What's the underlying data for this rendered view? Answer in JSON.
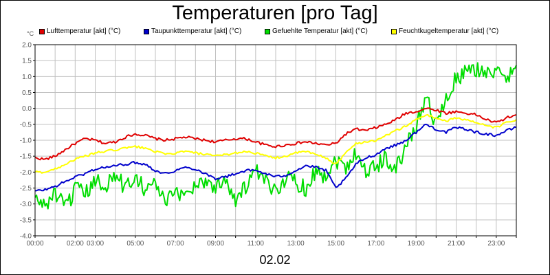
{
  "chart_data": {
    "type": "line",
    "title": "Temperaturen [pro Tag]",
    "xlabel": "02.02",
    "ylabel": "°C",
    "ylim": [
      -4.0,
      2.0
    ],
    "xlim": [
      0,
      24
    ],
    "y_ticks": [
      "2.0",
      "1.5",
      "1.0",
      "0.5",
      "0.0",
      "-0.5",
      "-1.0",
      "-1.5",
      "-2.0",
      "-2.5",
      "-3.0",
      "-3.5",
      "-4.0"
    ],
    "x_tick_labels": [
      "00:00",
      "02:00",
      "03:00",
      "05:00",
      "07:00",
      "09:00",
      "11:00",
      "13:00",
      "15:00",
      "17:00",
      "19:00",
      "21:00",
      "23:00"
    ],
    "grid": true,
    "legend_position": "top",
    "series": [
      {
        "name": "Lufttemperatur [akt] (°C)",
        "color": "#e00000",
        "x": [
          0,
          0.5,
          1,
          1.5,
          2,
          2.5,
          3,
          3.5,
          4,
          4.5,
          5,
          5.5,
          6,
          6.5,
          7,
          7.5,
          8,
          8.5,
          9,
          9.5,
          10,
          10.5,
          11,
          11.5,
          12,
          12.5,
          13,
          13.5,
          14,
          14.5,
          15,
          15.5,
          16,
          16.5,
          17,
          17.5,
          18,
          18.5,
          19,
          19.5,
          20,
          20.5,
          21,
          21.5,
          22,
          22.5,
          23,
          23.5,
          24
        ],
        "y": [
          -1.55,
          -1.6,
          -1.5,
          -1.3,
          -1.1,
          -0.95,
          -1.0,
          -1.1,
          -1.05,
          -0.9,
          -0.8,
          -0.85,
          -0.95,
          -1.0,
          -0.95,
          -0.9,
          -0.95,
          -1.0,
          -1.05,
          -1.0,
          -0.95,
          -0.95,
          -1.05,
          -1.15,
          -1.2,
          -1.15,
          -1.1,
          -1.05,
          -1.1,
          -1.15,
          -1.1,
          -0.8,
          -0.65,
          -0.7,
          -0.6,
          -0.5,
          -0.35,
          -0.15,
          -0.1,
          0.0,
          -0.05,
          -0.15,
          -0.1,
          -0.15,
          -0.2,
          -0.35,
          -0.45,
          -0.3,
          -0.2
        ]
      },
      {
        "name": "Taupunkttemperatur [akt] (°C)",
        "color": "#0000cc",
        "x": [
          0,
          0.5,
          1,
          1.5,
          2,
          2.5,
          3,
          3.5,
          4,
          4.5,
          5,
          5.5,
          6,
          6.5,
          7,
          7.5,
          8,
          8.5,
          9,
          9.5,
          10,
          10.5,
          11,
          11.5,
          12,
          12.5,
          13,
          13.5,
          14,
          14.5,
          15,
          15.5,
          16,
          16.5,
          17,
          17.5,
          18,
          18.5,
          19,
          19.5,
          20,
          20.5,
          21,
          21.5,
          22,
          22.5,
          23,
          23.5,
          24
        ],
        "y": [
          -2.6,
          -2.55,
          -2.45,
          -2.3,
          -2.15,
          -2.05,
          -1.9,
          -1.85,
          -1.8,
          -1.75,
          -1.7,
          -1.75,
          -1.95,
          -2.05,
          -1.95,
          -1.85,
          -1.9,
          -2.05,
          -2.2,
          -2.15,
          -2.05,
          -1.95,
          -1.95,
          -2.05,
          -2.15,
          -2.1,
          -1.95,
          -1.8,
          -1.85,
          -1.95,
          -2.5,
          -2.2,
          -1.75,
          -1.55,
          -1.45,
          -1.25,
          -1.15,
          -1.0,
          -0.75,
          -0.5,
          -0.65,
          -0.75,
          -0.6,
          -0.65,
          -0.75,
          -0.8,
          -0.85,
          -0.7,
          -0.6
        ]
      },
      {
        "name": "Gefuehlte Temperatur [akt] (°C)",
        "color": "#00dd00",
        "x": [
          0,
          0.5,
          1,
          1.5,
          2,
          2.5,
          3,
          3.5,
          4,
          4.5,
          5,
          5.5,
          6,
          6.5,
          7,
          7.5,
          8,
          8.5,
          9,
          9.5,
          10,
          10.5,
          11,
          11.5,
          12,
          12.5,
          13,
          13.5,
          14,
          14.5,
          15,
          15.5,
          16,
          16.5,
          17,
          17.5,
          18,
          18.5,
          19,
          19.5,
          20,
          20.5,
          21,
          21.5,
          22,
          22.5,
          23,
          23.5,
          24
        ],
        "y": [
          -2.85,
          -3.05,
          -2.65,
          -3.15,
          -2.55,
          -2.7,
          -2.3,
          -2.4,
          -2.1,
          -2.5,
          -2.05,
          -2.55,
          -2.35,
          -2.95,
          -2.7,
          -2.65,
          -2.4,
          -2.25,
          -2.5,
          -2.15,
          -2.9,
          -2.45,
          -2.0,
          -2.35,
          -2.6,
          -2.15,
          -2.3,
          -2.5,
          -1.95,
          -2.1,
          -1.6,
          -1.85,
          -1.35,
          -2.0,
          -1.8,
          -1.55,
          -1.9,
          -1.2,
          -0.55,
          0.4,
          -0.5,
          0.25,
          0.95,
          1.1,
          1.25,
          1.15,
          1.1,
          0.9,
          1.35
        ]
      },
      {
        "name": "Feuchtkugeltemperatur [akt] (°C)",
        "color": "#ffff00",
        "x": [
          0,
          0.5,
          1,
          1.5,
          2,
          2.5,
          3,
          3.5,
          4,
          4.5,
          5,
          5.5,
          6,
          6.5,
          7,
          7.5,
          8,
          8.5,
          9,
          9.5,
          10,
          10.5,
          11,
          11.5,
          12,
          12.5,
          13,
          13.5,
          14,
          14.5,
          15,
          15.5,
          16,
          16.5,
          17,
          17.5,
          18,
          18.5,
          19,
          19.5,
          20,
          20.5,
          21,
          21.5,
          22,
          22.5,
          23,
          23.5,
          24
        ],
        "y": [
          -2.0,
          -2.0,
          -1.9,
          -1.75,
          -1.6,
          -1.5,
          -1.4,
          -1.35,
          -1.3,
          -1.25,
          -1.2,
          -1.25,
          -1.35,
          -1.45,
          -1.4,
          -1.35,
          -1.4,
          -1.45,
          -1.5,
          -1.45,
          -1.4,
          -1.35,
          -1.4,
          -1.5,
          -1.55,
          -1.5,
          -1.4,
          -1.35,
          -1.45,
          -1.55,
          -1.75,
          -1.4,
          -1.1,
          -1.05,
          -1.0,
          -0.85,
          -0.7,
          -0.55,
          -0.35,
          -0.2,
          -0.3,
          -0.4,
          -0.3,
          -0.35,
          -0.45,
          -0.55,
          -0.6,
          -0.45,
          -0.35
        ]
      }
    ]
  }
}
